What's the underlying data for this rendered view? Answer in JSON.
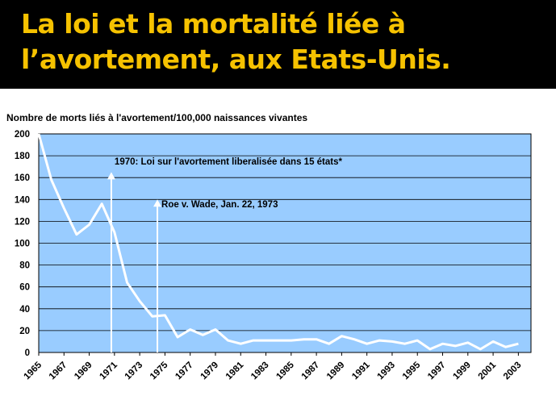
{
  "slide": {
    "title_line1": "La loi et la mortalité liée à",
    "title_line2": "l’avortement, aux Etats-Unis.",
    "title_color": "#F6C200",
    "header_background": "#000000"
  },
  "chart_data": {
    "type": "line",
    "title": "",
    "ylabel": "Nombre de morts liés à l'avortement/100,000 naissances vivantes",
    "xlabel": "",
    "ylim": [
      0,
      200
    ],
    "yticks": [
      0,
      20,
      40,
      60,
      80,
      100,
      120,
      140,
      160,
      180,
      200
    ],
    "xlim": [
      1965,
      2004
    ],
    "xticks": [
      "1965",
      "1967",
      "1969",
      "1971",
      "1973",
      "1975",
      "1977",
      "1979",
      "1981",
      "1983",
      "1985",
      "1987",
      "1989",
      "1991",
      "1993",
      "1995",
      "1997",
      "1999",
      "2001",
      "2003"
    ],
    "grid": true,
    "plot_background": "#99CCFF",
    "line_color": "#FFFFFF",
    "series": [
      {
        "x": [
          1965,
          1966,
          1967,
          1968,
          1969,
          1970,
          1971,
          1972,
          1973,
          1974,
          1975,
          1976,
          1977,
          1978,
          1979,
          1980,
          1981,
          1982,
          1983,
          1984,
          1985,
          1986,
          1987,
          1988,
          1989,
          1990,
          1991,
          1992,
          1993,
          1994,
          1995,
          1996,
          1997,
          1998,
          1999,
          2000,
          2001,
          2002,
          2003
        ],
        "values": [
          200,
          158,
          132,
          108,
          117,
          136,
          110,
          64,
          47,
          33,
          34,
          14,
          21,
          16,
          21,
          11,
          8,
          11,
          11,
          11,
          11,
          12,
          12,
          8,
          15,
          12,
          8,
          11,
          10,
          8,
          11,
          3,
          8,
          6,
          9,
          3,
          10,
          5,
          8
        ]
      }
    ],
    "annotations": [
      {
        "text": "1970: Loi sur l'avortement liberalisée dans 15 états*",
        "x": 1970.75,
        "y": 165
      },
      {
        "text": "Roe v. Wade, Jan. 22, 1973",
        "x": 1974.4,
        "y": 140
      }
    ]
  }
}
